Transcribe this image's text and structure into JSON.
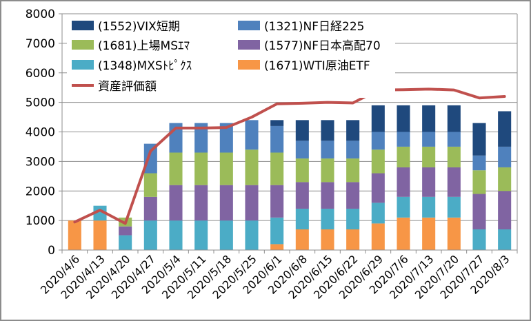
{
  "chart_data": {
    "type": "bar",
    "stacked": true,
    "title": "",
    "xlabel": "",
    "ylabel": "",
    "ylim": [
      0,
      8000
    ],
    "yticks": [
      0,
      1000,
      2000,
      3000,
      4000,
      5000,
      6000,
      7000,
      8000
    ],
    "grid": true,
    "legend_position": "top-left",
    "categories": [
      "2020/4/6",
      "2020/4/13",
      "2020/4/20",
      "2020/4/27",
      "2020/5/4",
      "2020/5/11",
      "2020/5/18",
      "2020/5/25",
      "2020/6/1",
      "2020/6/8",
      "2020/6/15",
      "2020/6/22",
      "2020/6/29",
      "2020/7/6",
      "2020/7/13",
      "2020/7/20",
      "2020/7/27",
      "2020/8/3"
    ],
    "series": [
      {
        "name": "(1671)WTI原油ETF",
        "color": "#f79646",
        "values": [
          1000,
          1000,
          0,
          0,
          0,
          0,
          0,
          0,
          200,
          700,
          700,
          700,
          900,
          1100,
          1100,
          1100,
          0,
          0
        ]
      },
      {
        "name": "(1348)MXSﾄﾋﾟｸｽ",
        "color": "#4bacc6",
        "values": [
          0,
          500,
          500,
          1000,
          1000,
          1000,
          1000,
          1000,
          900,
          700,
          700,
          700,
          700,
          700,
          700,
          700,
          700,
          700
        ]
      },
      {
        "name": "(1577)NF日本高配70",
        "color": "#8064a2",
        "values": [
          0,
          0,
          300,
          800,
          1200,
          1200,
          1200,
          1200,
          1100,
          900,
          900,
          900,
          1000,
          1000,
          1000,
          1000,
          1200,
          1300
        ]
      },
      {
        "name": "(1681)上場MSｴﾏ",
        "color": "#9bbb59",
        "values": [
          0,
          0,
          300,
          800,
          1100,
          1100,
          1100,
          1200,
          1100,
          800,
          800,
          800,
          800,
          700,
          700,
          700,
          800,
          800
        ]
      },
      {
        "name": "(1321)NF日経225",
        "color": "#4f81bd",
        "values": [
          0,
          0,
          0,
          1000,
          1000,
          1000,
          1000,
          1000,
          900,
          600,
          600,
          600,
          600,
          500,
          500,
          500,
          500,
          700
        ]
      },
      {
        "name": "(1552)VIX短期",
        "color": "#1f497d",
        "values": [
          0,
          0,
          0,
          0,
          0,
          0,
          0,
          0,
          200,
          700,
          700,
          700,
          900,
          900,
          900,
          900,
          1100,
          1200
        ]
      }
    ],
    "line": {
      "name": "資産評価額",
      "color": "#c0504d",
      "values": [
        950,
        1350,
        900,
        3350,
        4130,
        4130,
        4150,
        4500,
        4950,
        4970,
        5000,
        4980,
        5420,
        5430,
        5450,
        5420,
        5150,
        5200
      ]
    },
    "legend_order": [
      "(1552)VIX短期",
      "(1321)NF日経225",
      "(1681)上場MSｴﾏ",
      "(1577)NF日本高配70",
      "(1348)MXSﾄﾋﾟｸｽ",
      "(1671)WTI原油ETF",
      "資産評価額"
    ]
  }
}
